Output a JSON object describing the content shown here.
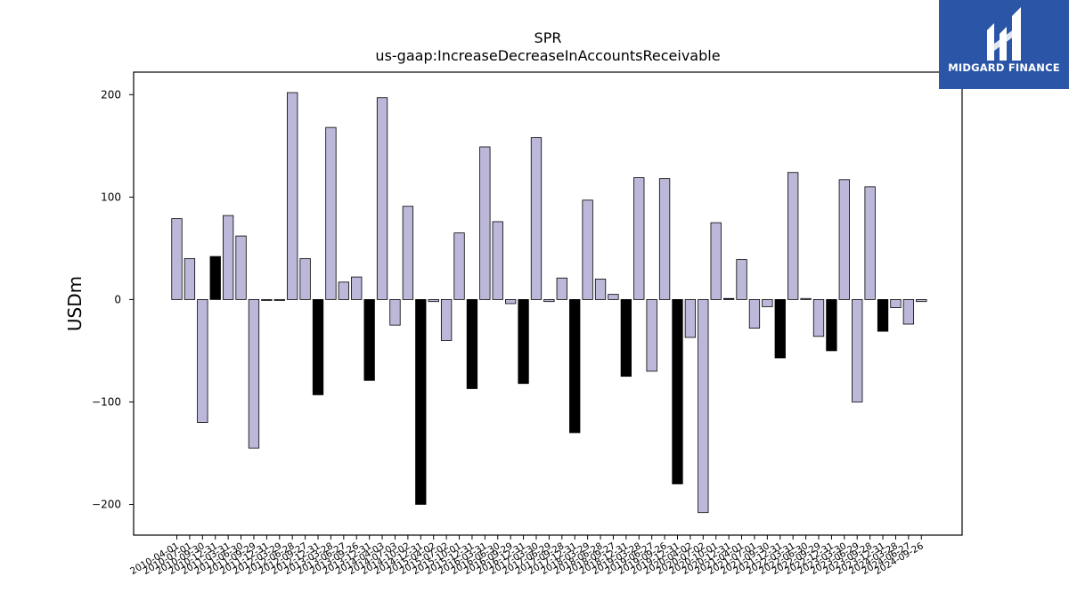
{
  "logo": {
    "text": "MIDGARD FINANCE",
    "background": "#2b56a8"
  },
  "chart_data": {
    "type": "bar",
    "title": "SPR",
    "subtitle": "us-gaap:IncreaseDecreaseInAccountsReceivable",
    "ylabel": "USDm",
    "xlabel": "",
    "ylim": [
      -230,
      222
    ],
    "yticks": [
      200,
      100,
      0,
      -100,
      -200
    ],
    "ytick_labels": [
      "200",
      "100",
      "0",
      "−100",
      "−200"
    ],
    "grid": false,
    "legend": "none",
    "colors": {
      "default": "#bcb8da",
      "highlight": "#000000",
      "edge": "#000000"
    },
    "categories": [
      "2010-04-01",
      "2010-07-01",
      "2010-09-30",
      "2010-12-31",
      "2011-03-31",
      "2011-06-30",
      "2011-09-29",
      "2011-12-31",
      "2012-03-29",
      "2012-06-28",
      "2012-09-27",
      "2012-12-31",
      "2013-03-28",
      "2013-06-27",
      "2013-09-26",
      "2013-12-31",
      "2014-04-03",
      "2014-07-03",
      "2014-10-02",
      "2014-12-31",
      "2015-04-02",
      "2015-07-02",
      "2015-10-01",
      "2015-12-31",
      "2016-03-31",
      "2016-06-30",
      "2016-09-29",
      "2016-12-31",
      "2017-03-30",
      "2017-06-29",
      "2017-09-28",
      "2017-12-31",
      "2018-03-29",
      "2018-06-28",
      "2018-09-27",
      "2018-12-31",
      "2019-03-28",
      "2019-06-27",
      "2019-09-26",
      "2019-12-31",
      "2020-04-02",
      "2020-07-02",
      "2020-10-01",
      "2020-12-31",
      "2021-04-01",
      "2021-07-01",
      "2021-09-30",
      "2021-12-31",
      "2022-03-31",
      "2022-06-30",
      "2022-09-29",
      "2022-12-31",
      "2023-03-30",
      "2023-06-29",
      "2023-09-28",
      "2023-12-31",
      "2024-03-28",
      "2024-06-27",
      "2024-09-26"
    ],
    "values": [
      79,
      40,
      -120,
      42,
      82,
      62,
      -145,
      0,
      0,
      202,
      40,
      -93,
      168,
      17,
      22,
      -79,
      197,
      -25,
      91,
      -200,
      -2,
      -40,
      65,
      -87,
      149,
      76,
      -4,
      -82,
      158,
      -2,
      21,
      -130,
      97,
      20,
      5,
      -75,
      119,
      -70,
      118,
      -180,
      -37,
      -208,
      75,
      1,
      39,
      -28,
      -7,
      -57,
      124,
      1,
      -36,
      -50,
      117,
      -100,
      110,
      -31,
      -8,
      -24,
      -2
    ],
    "highlighted": [
      false,
      false,
      false,
      true,
      false,
      false,
      false,
      false,
      false,
      false,
      false,
      true,
      false,
      false,
      false,
      true,
      false,
      false,
      false,
      true,
      false,
      false,
      false,
      true,
      false,
      false,
      false,
      true,
      false,
      false,
      false,
      true,
      false,
      false,
      false,
      true,
      false,
      false,
      false,
      true,
      false,
      false,
      false,
      true,
      false,
      false,
      false,
      true,
      false,
      false,
      false,
      true,
      false,
      false,
      false,
      true,
      false,
      false,
      false
    ]
  }
}
